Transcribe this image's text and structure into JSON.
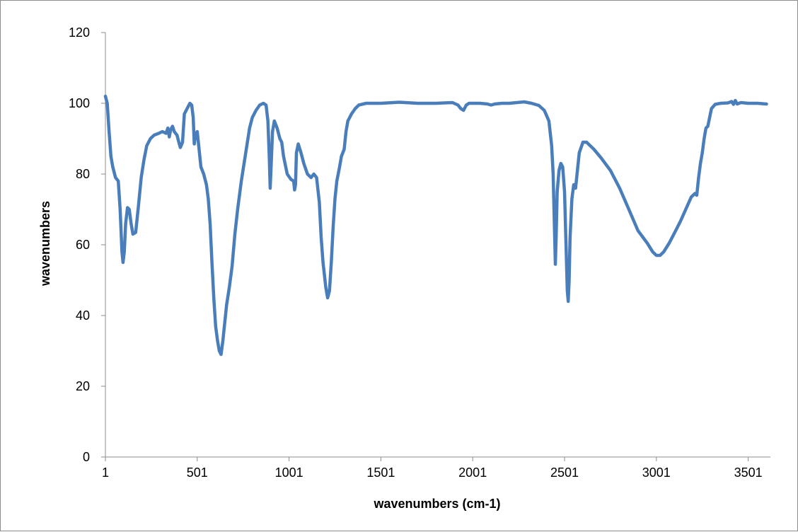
{
  "chart_data": {
    "type": "line",
    "title": "",
    "xlabel": "wavenumbers (cm-1)",
    "ylabel": "wavenumbers",
    "xlim": [
      1,
      3622
    ],
    "ylim": [
      0,
      120
    ],
    "xticks": [
      1,
      501,
      1001,
      1501,
      2001,
      2501,
      3001,
      3501
    ],
    "yticks": [
      0,
      20,
      40,
      60,
      80,
      100,
      120
    ],
    "grid": false,
    "legend": "none",
    "series": [
      {
        "color": "#4a7ebb",
        "points": [
          [
            1,
            102
          ],
          [
            11,
            100
          ],
          [
            21,
            92
          ],
          [
            31,
            85
          ],
          [
            41,
            82
          ],
          [
            56,
            79
          ],
          [
            71,
            78
          ],
          [
            81,
            70
          ],
          [
            91,
            58
          ],
          [
            97,
            55
          ],
          [
            104,
            58
          ],
          [
            111,
            66
          ],
          [
            121,
            70.5
          ],
          [
            131,
            70
          ],
          [
            141,
            66
          ],
          [
            151,
            63
          ],
          [
            166,
            63.5
          ],
          [
            181,
            71
          ],
          [
            196,
            79
          ],
          [
            211,
            84
          ],
          [
            226,
            88
          ],
          [
            246,
            90
          ],
          [
            266,
            91
          ],
          [
            291,
            91.5
          ],
          [
            311,
            92
          ],
          [
            331,
            91.5
          ],
          [
            341,
            93
          ],
          [
            349,
            90.5
          ],
          [
            356,
            92.5
          ],
          [
            366,
            93.5
          ],
          [
            376,
            92
          ],
          [
            391,
            91
          ],
          [
            401,
            89
          ],
          [
            409,
            87.5
          ],
          [
            421,
            89
          ],
          [
            431,
            97
          ],
          [
            441,
            98
          ],
          [
            451,
            99
          ],
          [
            461,
            100
          ],
          [
            471,
            99.5
          ],
          [
            479,
            96
          ],
          [
            485,
            88.5
          ],
          [
            491,
            91
          ],
          [
            501,
            92
          ],
          [
            511,
            87
          ],
          [
            521,
            82
          ],
          [
            536,
            80
          ],
          [
            551,
            77
          ],
          [
            561,
            73
          ],
          [
            571,
            66
          ],
          [
            581,
            55
          ],
          [
            591,
            45
          ],
          [
            601,
            37
          ],
          [
            611,
            33
          ],
          [
            621,
            30
          ],
          [
            631,
            29
          ],
          [
            641,
            33
          ],
          [
            651,
            38
          ],
          [
            661,
            43
          ],
          [
            676,
            48
          ],
          [
            691,
            54
          ],
          [
            706,
            63
          ],
          [
            721,
            70
          ],
          [
            741,
            78
          ],
          [
            756,
            83
          ],
          [
            771,
            88
          ],
          [
            786,
            93
          ],
          [
            801,
            96
          ],
          [
            821,
            98
          ],
          [
            841,
            99.5
          ],
          [
            861,
            100
          ],
          [
            876,
            99.5
          ],
          [
            886,
            95
          ],
          [
            893,
            85
          ],
          [
            898,
            76
          ],
          [
            903,
            82
          ],
          [
            911,
            92
          ],
          [
            921,
            95
          ],
          [
            936,
            93
          ],
          [
            951,
            90
          ],
          [
            961,
            89
          ],
          [
            971,
            85
          ],
          [
            991,
            80
          ],
          [
            1011,
            78.5
          ],
          [
            1026,
            78
          ],
          [
            1031,
            75.5
          ],
          [
            1036,
            77
          ],
          [
            1041,
            86
          ],
          [
            1051,
            88.5
          ],
          [
            1066,
            86
          ],
          [
            1081,
            83
          ],
          [
            1101,
            80
          ],
          [
            1121,
            79
          ],
          [
            1136,
            80
          ],
          [
            1151,
            79
          ],
          [
            1166,
            72
          ],
          [
            1176,
            62
          ],
          [
            1186,
            55
          ],
          [
            1201,
            48
          ],
          [
            1211,
            45
          ],
          [
            1221,
            47
          ],
          [
            1231,
            55
          ],
          [
            1241,
            65
          ],
          [
            1251,
            73
          ],
          [
            1261,
            78
          ],
          [
            1276,
            82
          ],
          [
            1286,
            85
          ],
          [
            1301,
            87
          ],
          [
            1311,
            92
          ],
          [
            1321,
            95
          ],
          [
            1341,
            97
          ],
          [
            1361,
            98.5
          ],
          [
            1381,
            99.5
          ],
          [
            1421,
            100
          ],
          [
            1501,
            100
          ],
          [
            1601,
            100.3
          ],
          [
            1701,
            100
          ],
          [
            1801,
            100
          ],
          [
            1891,
            100.2
          ],
          [
            1921,
            99.5
          ],
          [
            1936,
            98.5
          ],
          [
            1951,
            98
          ],
          [
            1966,
            99.5
          ],
          [
            1981,
            100
          ],
          [
            2041,
            100
          ],
          [
            2081,
            99.8
          ],
          [
            2101,
            99.5
          ],
          [
            2121,
            99.8
          ],
          [
            2161,
            100
          ],
          [
            2201,
            100
          ],
          [
            2241,
            100.2
          ],
          [
            2281,
            100.4
          ],
          [
            2321,
            100
          ],
          [
            2361,
            99.4
          ],
          [
            2391,
            98
          ],
          [
            2416,
            95
          ],
          [
            2431,
            88
          ],
          [
            2439,
            80
          ],
          [
            2446,
            65
          ],
          [
            2451,
            54.5
          ],
          [
            2455,
            62
          ],
          [
            2461,
            75
          ],
          [
            2471,
            81
          ],
          [
            2481,
            83
          ],
          [
            2491,
            82
          ],
          [
            2501,
            75
          ],
          [
            2509,
            60
          ],
          [
            2516,
            47
          ],
          [
            2521,
            44
          ],
          [
            2526,
            50
          ],
          [
            2531,
            62
          ],
          [
            2541,
            73
          ],
          [
            2551,
            77
          ],
          [
            2561,
            76
          ],
          [
            2571,
            81
          ],
          [
            2581,
            86
          ],
          [
            2601,
            89
          ],
          [
            2621,
            89
          ],
          [
            2661,
            87
          ],
          [
            2701,
            84.5
          ],
          [
            2751,
            81
          ],
          [
            2801,
            76
          ],
          [
            2851,
            70
          ],
          [
            2901,
            64
          ],
          [
            2951,
            60.5
          ],
          [
            2981,
            58
          ],
          [
            3001,
            57
          ],
          [
            3021,
            57
          ],
          [
            3041,
            58
          ],
          [
            3071,
            60.5
          ],
          [
            3101,
            63.5
          ],
          [
            3131,
            66.5
          ],
          [
            3161,
            70
          ],
          [
            3191,
            73.5
          ],
          [
            3211,
            74.5
          ],
          [
            3221,
            74
          ],
          [
            3231,
            79
          ],
          [
            3241,
            83
          ],
          [
            3251,
            86
          ],
          [
            3261,
            90
          ],
          [
            3271,
            93
          ],
          [
            3281,
            93.5
          ],
          [
            3291,
            96
          ],
          [
            3301,
            98.5
          ],
          [
            3321,
            99.7
          ],
          [
            3351,
            100
          ],
          [
            3391,
            100.1
          ],
          [
            3411,
            100.5
          ],
          [
            3421,
            99.7
          ],
          [
            3431,
            100.8
          ],
          [
            3441,
            99.8
          ],
          [
            3461,
            100.2
          ],
          [
            3501,
            100
          ],
          [
            3551,
            100
          ],
          [
            3601,
            99.8
          ]
        ]
      }
    ]
  }
}
